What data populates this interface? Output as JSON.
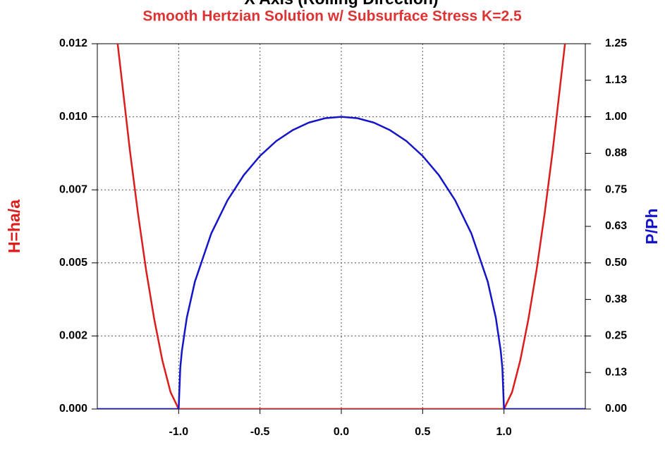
{
  "chart_data": {
    "type": "line",
    "title": "Smooth Hertzian Solution w/ Subsurface Stress K=2.5",
    "xlabel": "X Axis (Rolling Direction)",
    "ylabel": "H=ha/a",
    "y2label": "P/Ph",
    "grid": true,
    "xlim": [
      -1.5,
      1.5
    ],
    "xticks": [
      {
        "value": -1,
        "label": "-1.0"
      },
      -0.5,
      {
        "value": 0,
        "label": "0.0"
      },
      0.5,
      {
        "value": 1,
        "label": "1.0"
      }
    ],
    "ylim": [
      0,
      0.0125
    ],
    "yticks": [
      {
        "value": 0,
        "label": "0.000"
      },
      {
        "value": 0.0025,
        "label": "0.002"
      },
      0.005,
      {
        "value": 0.0075,
        "label": "0.007"
      },
      {
        "value": 0.01,
        "label": "0.010"
      },
      {
        "value": 0.0125,
        "label": "0.012"
      }
    ],
    "y2lim": [
      0,
      1.25
    ],
    "y2ticks": [
      {
        "value": 0,
        "label": "0.00"
      },
      {
        "value": 0.125,
        "label": "0.13"
      },
      {
        "value": 0.25,
        "label": "0.25"
      },
      {
        "value": 0.375,
        "label": "0.38"
      },
      {
        "value": 0.5,
        "label": "0.50"
      },
      {
        "value": 0.625,
        "label": "0.63"
      },
      {
        "value": 0.75,
        "label": "0.75"
      },
      {
        "value": 0.875,
        "label": "0.88"
      },
      {
        "value": 1,
        "label": "1.00"
      },
      {
        "value": 1.125,
        "label": "1.13"
      },
      {
        "value": 1.25,
        "label": "1.25"
      }
    ],
    "series": [
      {
        "name": "H",
        "color": "#dd1c1c",
        "axis": "y",
        "x": [
          -1.375,
          -1.3,
          -1.25,
          -1.2,
          -1.15,
          -1.1,
          -1.05,
          -1,
          -0.5,
          0,
          0.5,
          1,
          1.05,
          1.1,
          1.15,
          1.2,
          1.25,
          1.3,
          1.375
        ],
        "values": [
          0.0125,
          0.00886,
          0.00669,
          0.00475,
          0.00307,
          0.00166,
          0.00058,
          0,
          0,
          0,
          0,
          0,
          0.00058,
          0.00166,
          0.00307,
          0.00475,
          0.00669,
          0.00886,
          0.0125
        ]
      },
      {
        "name": "P",
        "color": "#1414c8",
        "axis": "y2",
        "x": [
          -1.5,
          -1,
          -0.99,
          -0.98,
          -0.95,
          -0.9,
          -0.8,
          -0.7,
          -0.6,
          -0.5,
          -0.4,
          -0.3,
          -0.2,
          -0.1,
          0,
          0.1,
          0.2,
          0.3,
          0.4,
          0.5,
          0.6,
          0.7,
          0.8,
          0.9,
          0.95,
          0.98,
          0.99,
          1,
          1.5
        ],
        "values": [
          0,
          0,
          0.141,
          0.199,
          0.312,
          0.436,
          0.6,
          0.714,
          0.8,
          0.866,
          0.917,
          0.954,
          0.98,
          0.995,
          1,
          0.995,
          0.98,
          0.954,
          0.917,
          0.866,
          0.8,
          0.714,
          0.6,
          0.436,
          0.312,
          0.199,
          0.141,
          0,
          0
        ]
      }
    ]
  }
}
